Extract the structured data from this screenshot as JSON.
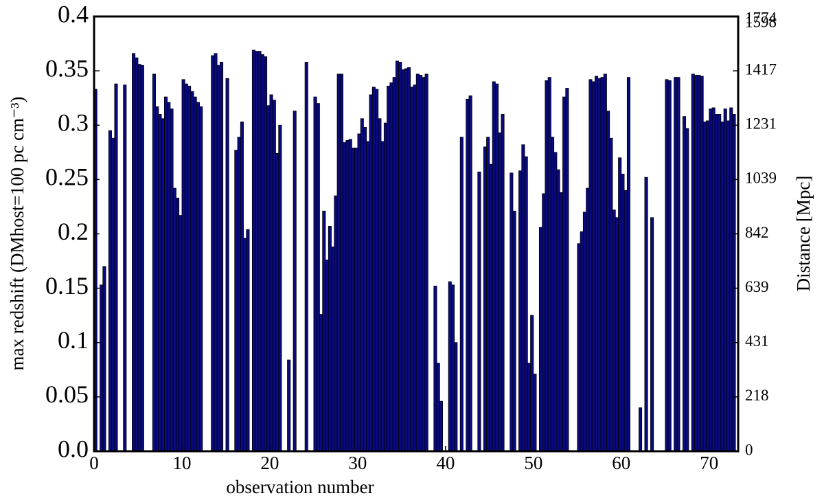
{
  "chart_data": {
    "type": "bar",
    "xlabel": "observation number",
    "ylabel": "max redshift (DMhost=100 pc cm⁻³)",
    "y2label": "Distance [Mpc]",
    "x": [
      0,
      1,
      2,
      3,
      4,
      5,
      6,
      7,
      8,
      9,
      10,
      11,
      12,
      13,
      14,
      15,
      16,
      17,
      18,
      19,
      20,
      21,
      22,
      23,
      24,
      25,
      26,
      27,
      28,
      29,
      30,
      31,
      32,
      33,
      34,
      35,
      36,
      37,
      38,
      39,
      40,
      41,
      42,
      43,
      44,
      45,
      46,
      47,
      48,
      49,
      50,
      51,
      52,
      53,
      54,
      55,
      56,
      57,
      58,
      59,
      60,
      61,
      62,
      63,
      64,
      65,
      66,
      67,
      68,
      69,
      70,
      71,
      72
    ],
    "series": [
      {
        "color": "#0a0a80",
        "values": [
          0.333,
          0.17,
          0.288,
          0,
          0,
          0.356,
          0,
          0.317,
          0.326,
          0.242,
          0.342,
          0.331,
          0.317,
          0,
          0.355,
          0.343,
          0.277,
          0.196,
          0.369,
          0.365,
          0.328,
          0.3,
          0.084,
          0,
          0.358,
          0.326,
          0.221,
          0.188,
          0.347,
          0.287,
          0.292,
          0.285,
          0.333,
          0.302,
          0.344,
          0.351,
          0.335,
          0.346,
          0,
          0.081,
          0,
          0.1,
          0,
          0,
          0,
          0.264,
          0.293,
          0,
          0,
          0.271,
          0.071,
          0.237,
          0.289,
          0.238,
          0,
          0.191,
          0.242,
          0.345,
          0.347,
          0.222,
          0.255,
          0,
          0.04,
          0,
          0,
          0.342,
          0.344,
          0.308,
          0.347,
          0.345,
          0.315,
          0.31,
          0.304
        ]
      },
      {
        "color": "#0a0a80",
        "values": [
          0,
          0,
          0.338,
          0.337,
          0.366,
          0.355,
          0,
          0.31,
          0.321,
          0.233,
          0.338,
          0.326,
          0,
          0.364,
          0.358,
          0,
          0.289,
          0.204,
          0.368,
          0.363,
          0.323,
          0,
          0,
          0,
          0,
          0.32,
          0.176,
          0.235,
          0.284,
          0.279,
          0.306,
          0.328,
          0.306,
          0.336,
          0.359,
          0.352,
          0.337,
          0.344,
          0,
          0.046,
          0.156,
          0,
          0.324,
          0,
          0.28,
          0.34,
          0.31,
          0.256,
          0.258,
          0.081,
          0,
          0.341,
          0.275,
          0.326,
          0,
          0.202,
          0.342,
          0.343,
          0.313,
          0.215,
          0.24,
          0,
          0,
          0.215,
          0,
          0.341,
          0.344,
          0.297,
          0.346,
          0.303,
          0.316,
          0.303,
          0.316
        ]
      },
      {
        "color": "#0a0a80",
        "values": [
          0.153,
          0.295,
          0,
          0,
          0.362,
          0,
          0.347,
          0.306,
          0.315,
          0.217,
          0.336,
          0.321,
          0,
          0.366,
          0,
          0,
          0.303,
          0,
          0.368,
          0.318,
          0.274,
          0,
          0.313,
          0,
          0,
          0.126,
          0.207,
          0.347,
          0.286,
          0.279,
          0.298,
          0.335,
          0.285,
          0.339,
          0.358,
          0.353,
          0.347,
          0.347,
          0.152,
          0,
          0.153,
          0.289,
          0.327,
          0.257,
          0.289,
          0.338,
          0,
          0.221,
          0.282,
          0.125,
          0.206,
          0.344,
          0.259,
          0.334,
          0,
          0.22,
          0.34,
          0.344,
          0.288,
          0.27,
          0.344,
          0,
          0.252,
          0,
          0,
          0,
          0,
          0,
          0.346,
          0.304,
          0.31,
          0.315,
          0.31
        ]
      }
    ],
    "edgecolor": "#000000",
    "xlim": [
      0,
      73.3
    ],
    "xticks": [
      0,
      10,
      20,
      30,
      40,
      50,
      60,
      70
    ],
    "ylim": [
      0,
      0.4
    ],
    "yticks": [
      {
        "value": 0,
        "label": "0.0"
      },
      0.05,
      0.1,
      0.15,
      0.2,
      0.25,
      0.3,
      0.35,
      0.4
    ],
    "y2lim": [
      0,
      0.4
    ],
    "y2ticks": [
      {
        "value": 0,
        "label": "0"
      },
      {
        "value": 0.05,
        "label": "218"
      },
      {
        "value": 0.1,
        "label": "431"
      },
      {
        "value": 0.15,
        "label": "639"
      },
      {
        "value": 0.2,
        "label": "842"
      },
      {
        "value": 0.25,
        "label": "1039"
      },
      {
        "value": 0.3,
        "label": "1231"
      },
      {
        "value": 0.35,
        "label": "1417"
      },
      {
        "value": 0.4,
        "label": "1598"
      }
    ],
    "y2top_label": "1774",
    "grid": false
  }
}
